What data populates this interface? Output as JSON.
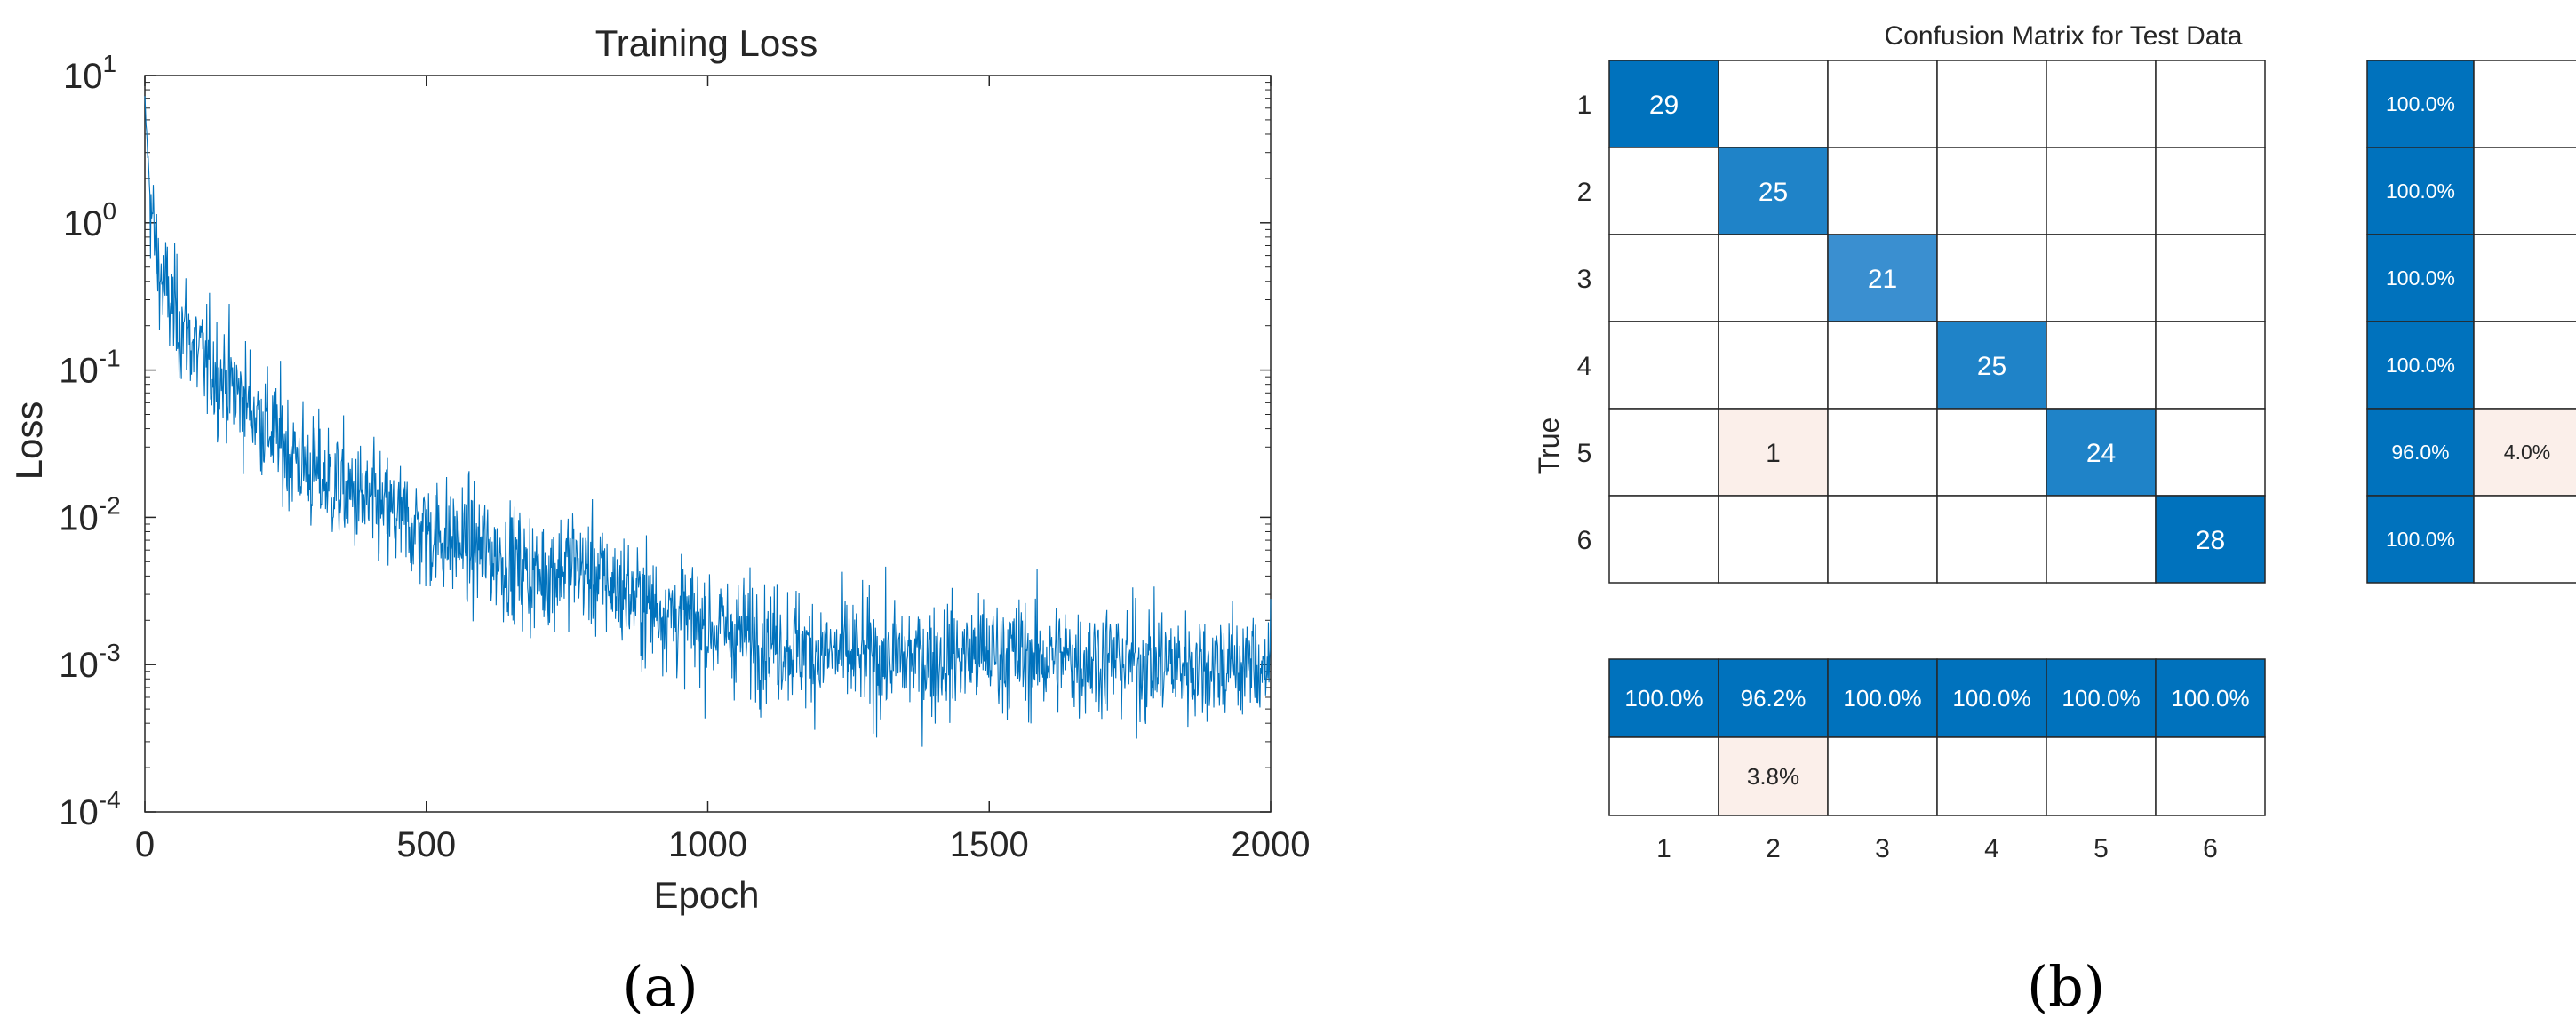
{
  "panel_labels": {
    "a": "(a)",
    "b": "(b)"
  },
  "chart_data": [
    {
      "type": "line",
      "title": "Training Loss",
      "xlabel": "Epoch",
      "ylabel": "Loss",
      "xlim": [
        0,
        2000
      ],
      "ylim": [
        0.0001,
        10
      ],
      "yscale": "log",
      "x_ticks": [
        0,
        500,
        1000,
        1500,
        2000
      ],
      "y_ticks": [
        0.0001,
        0.001,
        0.01,
        0.1,
        1,
        10
      ],
      "y_tick_labels": [
        {
          "base": "10",
          "exp": "-4"
        },
        {
          "base": "10",
          "exp": "-3"
        },
        {
          "base": "10",
          "exp": "-2"
        },
        {
          "base": "10",
          "exp": "-1"
        },
        {
          "base": "10",
          "exp": "0"
        },
        {
          "base": "10",
          "exp": "1"
        }
      ],
      "grid": false,
      "color": "#0072BD",
      "series": [
        {
          "x": [
            0,
            5,
            10,
            20,
            30,
            50,
            75,
            100,
            150,
            200,
            250,
            300,
            400,
            500,
            600,
            700,
            760,
            800,
            900,
            1000,
            1100,
            1200,
            1300,
            1400,
            1500,
            1600,
            1700,
            1800,
            1900,
            2000
          ],
          "values": [
            6.5,
            3.0,
            1.4,
            0.6,
            0.4,
            0.25,
            0.18,
            0.12,
            0.08,
            0.05,
            0.03,
            0.02,
            0.012,
            0.008,
            0.006,
            0.004,
            0.005,
            0.004,
            0.0025,
            0.0018,
            0.0015,
            0.0012,
            0.0011,
            0.0011,
            0.0012,
            0.0011,
            0.0011,
            0.001,
            0.001,
            0.001
          ]
        }
      ]
    },
    {
      "type": "heatmap",
      "title": "Confusion Matrix for Test Data",
      "ylabel": "True",
      "row_labels": [
        "1",
        "2",
        "3",
        "4",
        "5",
        "6"
      ],
      "col_labels": [
        "1",
        "2",
        "3",
        "4",
        "5",
        "6"
      ],
      "matrix": [
        [
          29,
          0,
          0,
          0,
          0,
          0
        ],
        [
          0,
          25,
          0,
          0,
          0,
          0
        ],
        [
          0,
          0,
          21,
          0,
          0,
          0
        ],
        [
          0,
          0,
          0,
          25,
          0,
          0
        ],
        [
          0,
          1,
          0,
          0,
          24,
          0
        ],
        [
          0,
          0,
          0,
          0,
          0,
          28
        ]
      ],
      "row_summary": [
        [
          "100.0%",
          ""
        ],
        [
          "100.0%",
          ""
        ],
        [
          "100.0%",
          ""
        ],
        [
          "100.0%",
          ""
        ],
        [
          "96.0%",
          "4.0%"
        ],
        [
          "100.0%",
          ""
        ]
      ],
      "column_summary": [
        [
          "100.0%",
          "96.2%",
          "100.0%",
          "100.0%",
          "100.0%",
          "100.0%"
        ],
        [
          "",
          "3.8%",
          "",
          "",
          "",
          ""
        ]
      ],
      "colors": {
        "diag_dark": "#0072BD",
        "diag_mid": "#1F83C8",
        "diag_light": "#3A8FD0",
        "error": "#FBEFEA",
        "text_light": "#ffffff",
        "text_dark": "#262626",
        "grid": "#262626"
      }
    }
  ]
}
